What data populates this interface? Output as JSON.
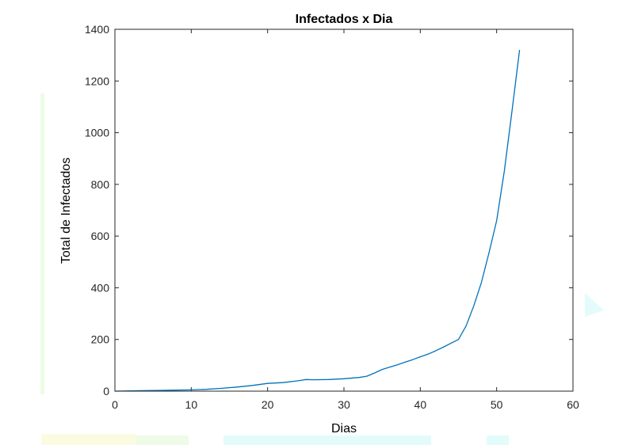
{
  "chart_data": {
    "type": "line",
    "title": "Infectados x Dia",
    "xlabel": "Dias",
    "ylabel": "Total de Infectados",
    "xlim": [
      0,
      60
    ],
    "ylim": [
      0,
      1400
    ],
    "xticks": [
      0,
      10,
      20,
      30,
      40,
      50,
      60
    ],
    "yticks": [
      0,
      200,
      400,
      600,
      800,
      1000,
      1200,
      1400
    ],
    "grid": false,
    "series": [
      {
        "color": "#0072bd",
        "x": [
          0,
          2,
          4,
          6,
          8,
          10,
          12,
          14,
          16,
          18,
          20,
          22,
          24,
          25,
          26,
          28,
          30,
          32,
          33,
          34,
          35,
          36,
          37,
          38,
          39,
          40,
          41,
          42,
          43,
          44,
          45,
          46,
          47,
          48,
          49,
          50,
          51,
          52,
          53
        ],
        "y": [
          0,
          1,
          2,
          3,
          4,
          5,
          7,
          11,
          16,
          22,
          30,
          33,
          40,
          45,
          44,
          45,
          48,
          53,
          58,
          70,
          84,
          93,
          102,
          112,
          122,
          133,
          143,
          156,
          170,
          185,
          200,
          252,
          330,
          420,
          535,
          660,
          850,
          1080,
          1320
        ]
      }
    ]
  }
}
